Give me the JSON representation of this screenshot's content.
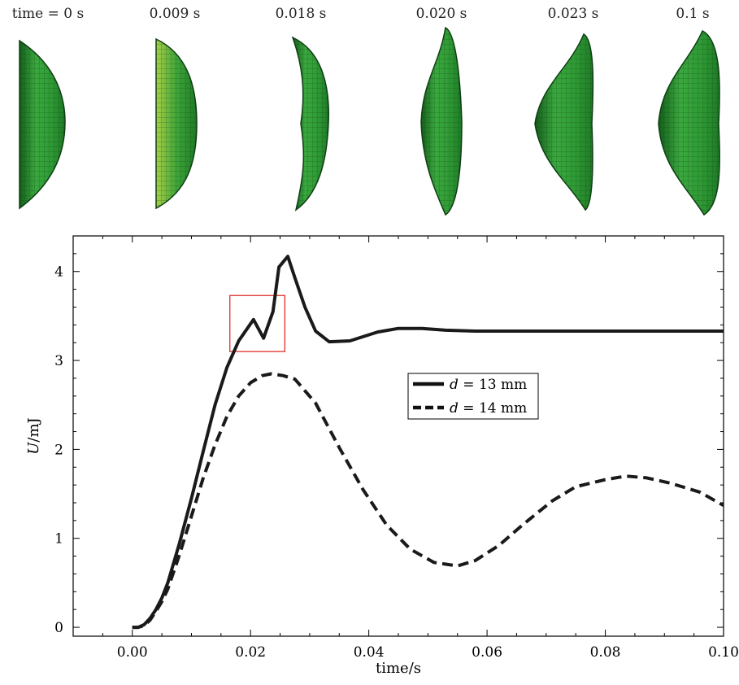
{
  "snapshots": [
    {
      "label": "time = 0 s",
      "stage": 0
    },
    {
      "label": "0.009 s",
      "stage": 1
    },
    {
      "label": "0.018 s",
      "stage": 2
    },
    {
      "label": "0.020 s",
      "stage": 3
    },
    {
      "label": "0.023 s",
      "stage": 4
    },
    {
      "label": "0.1 s",
      "stage": 5
    }
  ],
  "colors": {
    "shell_fill": "#2f9a35",
    "shell_light": "#8cc63f",
    "shell_dark": "#145c1b",
    "highlight_box": "#e0302a",
    "curve": "#1a1a1a"
  },
  "chart_data": {
    "type": "line",
    "xlabel": "time/s",
    "ylabel": "U/mJ",
    "xlim": [
      -0.01,
      0.1
    ],
    "ylim": [
      -0.1,
      4.4
    ],
    "x_ticks": [
      {
        "value": 0.0,
        "label": "0.00"
      },
      {
        "value": 0.02,
        "label": "0.02"
      },
      {
        "value": 0.04,
        "label": "0.04"
      },
      {
        "value": 0.06,
        "label": "0.06"
      },
      {
        "value": 0.08,
        "label": "0.08"
      },
      {
        "value": 0.1,
        "label": "0.10"
      }
    ],
    "y_ticks": [
      {
        "value": 0,
        "label": "0"
      },
      {
        "value": 1,
        "label": "1"
      },
      {
        "value": 2,
        "label": "2"
      },
      {
        "value": 3,
        "label": "3"
      },
      {
        "value": 4,
        "label": "4"
      }
    ],
    "grid": false,
    "legend_position": "center-right",
    "highlight_region": {
      "x": [
        0.0165,
        0.0258
      ],
      "y": [
        3.1,
        3.73
      ]
    },
    "series": [
      {
        "name": "d = 13 mm",
        "name_italic": "d",
        "name_rest": " = 13 mm",
        "style": "solid",
        "x": [
          0.0,
          0.001,
          0.002,
          0.003,
          0.004,
          0.005,
          0.006,
          0.008,
          0.01,
          0.012,
          0.014,
          0.016,
          0.018,
          0.0205,
          0.0222,
          0.0238,
          0.0248,
          0.0263,
          0.0275,
          0.0292,
          0.031,
          0.0333,
          0.0368,
          0.0415,
          0.045,
          0.049,
          0.053,
          0.058,
          0.065,
          0.075,
          0.085,
          0.1
        ],
        "y": [
          0.0,
          0.0,
          0.03,
          0.1,
          0.2,
          0.33,
          0.5,
          0.95,
          1.45,
          1.98,
          2.5,
          2.92,
          3.22,
          3.46,
          3.25,
          3.55,
          4.05,
          4.17,
          3.93,
          3.6,
          3.33,
          3.21,
          3.22,
          3.32,
          3.36,
          3.36,
          3.34,
          3.33,
          3.33,
          3.33,
          3.33,
          3.33
        ]
      },
      {
        "name": "d = 14 mm",
        "name_italic": "d",
        "name_rest": " = 14 mm",
        "style": "dashed",
        "x": [
          0.0,
          0.001,
          0.002,
          0.003,
          0.004,
          0.005,
          0.006,
          0.008,
          0.01,
          0.012,
          0.014,
          0.016,
          0.018,
          0.02,
          0.022,
          0.0235,
          0.0255,
          0.0275,
          0.031,
          0.035,
          0.039,
          0.043,
          0.047,
          0.051,
          0.055,
          0.058,
          0.062,
          0.066,
          0.071,
          0.075,
          0.08,
          0.0835,
          0.087,
          0.091,
          0.096,
          0.1
        ],
        "y": [
          0.0,
          0.0,
          0.02,
          0.08,
          0.18,
          0.29,
          0.43,
          0.82,
          1.25,
          1.68,
          2.05,
          2.37,
          2.6,
          2.75,
          2.83,
          2.85,
          2.83,
          2.79,
          2.52,
          2.02,
          1.55,
          1.15,
          0.88,
          0.73,
          0.69,
          0.75,
          0.92,
          1.15,
          1.42,
          1.58,
          1.66,
          1.7,
          1.68,
          1.62,
          1.52,
          1.37
        ]
      }
    ]
  }
}
